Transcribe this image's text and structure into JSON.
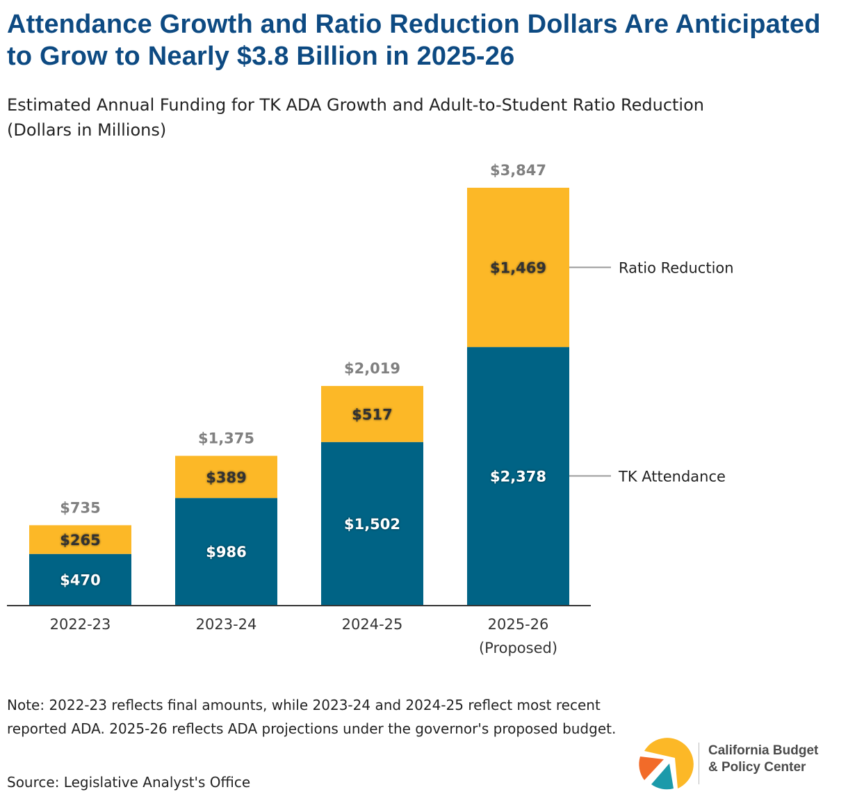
{
  "header": {
    "title": "Attendance Growth and Ratio Reduction Dollars Are Anticipated to Grow to Nearly $3.8 Billion in 2025-26",
    "subtitle_line1": "Estimated Annual Funding for TK ADA Growth and Adult-to-Student Ratio Reduction",
    "subtitle_line2": "(Dollars in Millions)"
  },
  "chart_data": {
    "type": "bar",
    "stacked": true,
    "title": "Estimated Annual Funding for TK ADA Growth and Adult-to-Student Ratio Reduction",
    "ylabel": "Dollars in Millions",
    "xlabel": "",
    "categories": [
      "2022-23",
      "2023-24",
      "2024-25",
      "2025-26"
    ],
    "category_sublabels": [
      "",
      "",
      "",
      "(Proposed)"
    ],
    "ylim": [
      0,
      4000
    ],
    "grid": false,
    "series": [
      {
        "name": "TK Attendance",
        "color": "#006385",
        "label_color": "#ffffff",
        "values": [
          470,
          986,
          1502,
          2378
        ],
        "labels": [
          "$470",
          "$986",
          "$1,502",
          "$2,378"
        ]
      },
      {
        "name": "Ratio Reduction",
        "color": "#fcb827",
        "label_color": "#333333",
        "values": [
          265,
          389,
          517,
          1469
        ],
        "labels": [
          "$265",
          "$389",
          "$517",
          "$1,469"
        ]
      }
    ],
    "totals": [
      735,
      1375,
      2019,
      3847
    ],
    "total_labels": [
      "$735",
      "$1,375",
      "$2,019",
      "$3,847"
    ],
    "total_label_color": "#808080",
    "legend": "right (direct labels on last bar)"
  },
  "footer": {
    "note": "Note: 2022-23 reflects final amounts, while 2023-24 and 2024-25 reflect most recent reported ADA. 2025-26 reflects ADA projections under the governor's proposed budget.",
    "source": "Source: Legislative Analyst's Office"
  },
  "logo": {
    "line1": "California Budget",
    "line2": "& Policy Center",
    "colors": {
      "yellow": "#fcb827",
      "orange": "#f26b29",
      "teal": "#1b9aaa"
    }
  }
}
